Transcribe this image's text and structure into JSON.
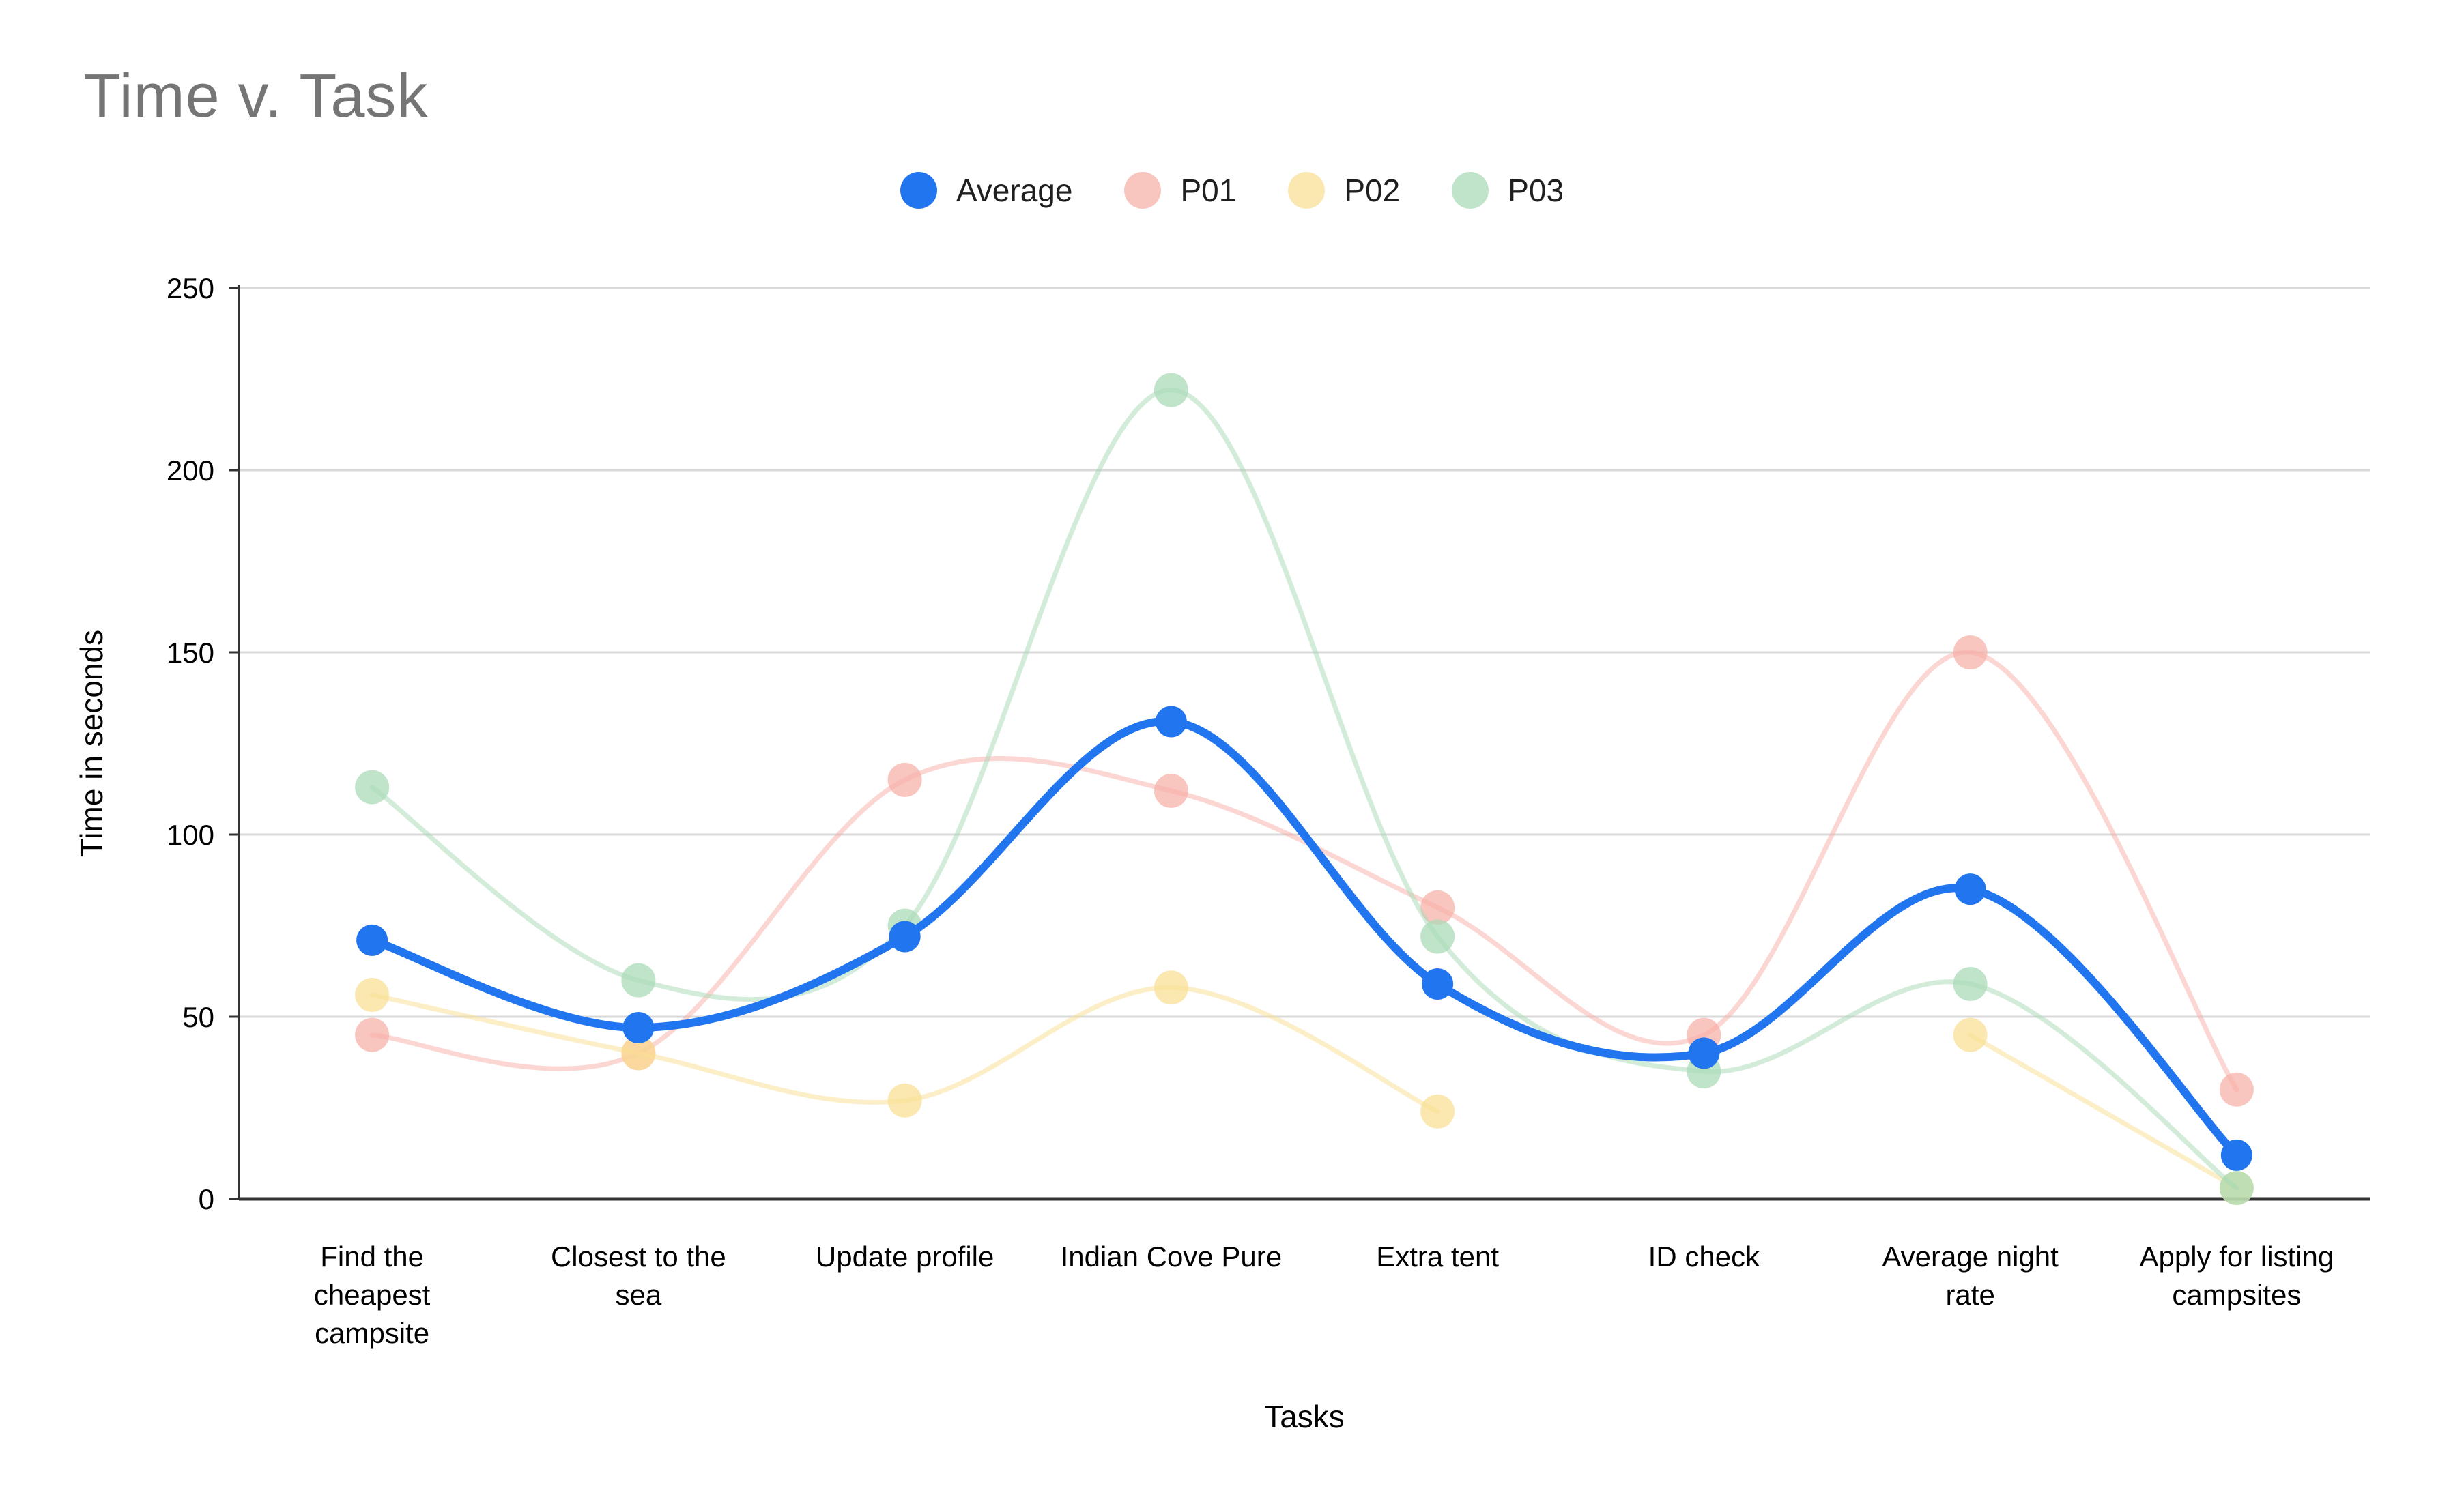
{
  "page": {
    "title": "Time v. Task"
  },
  "colors": {
    "background": "#ffffff",
    "title_text": "#757575",
    "axis_text": "#000000",
    "legend_text": "#1f1f1f",
    "gridline": "#d9d9d9",
    "axis_line": "#333333"
  },
  "chart_data": {
    "type": "line",
    "title": "Time v. Task",
    "xlabel": "Tasks",
    "ylabel": "Time in seconds",
    "ylim": [
      0,
      250
    ],
    "yticks": [
      0,
      50,
      100,
      150,
      200,
      250
    ],
    "grid": true,
    "legend_position": "top",
    "curve": "smooth",
    "categories": [
      "Find the cheapest campsite",
      "Closest to the sea",
      "Update profile",
      "Indian Cove Pure",
      "Extra tent",
      "ID check",
      "Average night rate",
      "Apply for listing campsites"
    ],
    "category_label_lines": [
      [
        "Find the",
        "cheapest",
        "campsite"
      ],
      [
        "Closest to the",
        "sea"
      ],
      [
        "Update profile"
      ],
      [
        "Indian Cove Pure"
      ],
      [
        "Extra tent"
      ],
      [
        "ID check"
      ],
      [
        "Average night",
        "rate"
      ],
      [
        "Apply for listing",
        "campsites"
      ]
    ],
    "series": [
      {
        "name": "Average",
        "color": "#2176f0",
        "emphasis": true,
        "values": [
          71,
          47,
          72,
          131,
          59,
          40,
          85,
          12
        ]
      },
      {
        "name": "P01",
        "color": "#f7aea6",
        "emphasis": false,
        "values": [
          45,
          40,
          115,
          112,
          80,
          45,
          150,
          30
        ]
      },
      {
        "name": "P02",
        "color": "#fadf92",
        "emphasis": false,
        "values": [
          56,
          40,
          27,
          58,
          24,
          null,
          45,
          3
        ]
      },
      {
        "name": "P03",
        "color": "#a8d9b5",
        "emphasis": false,
        "values": [
          113,
          60,
          75,
          222,
          72,
          35,
          59,
          3
        ]
      }
    ]
  }
}
